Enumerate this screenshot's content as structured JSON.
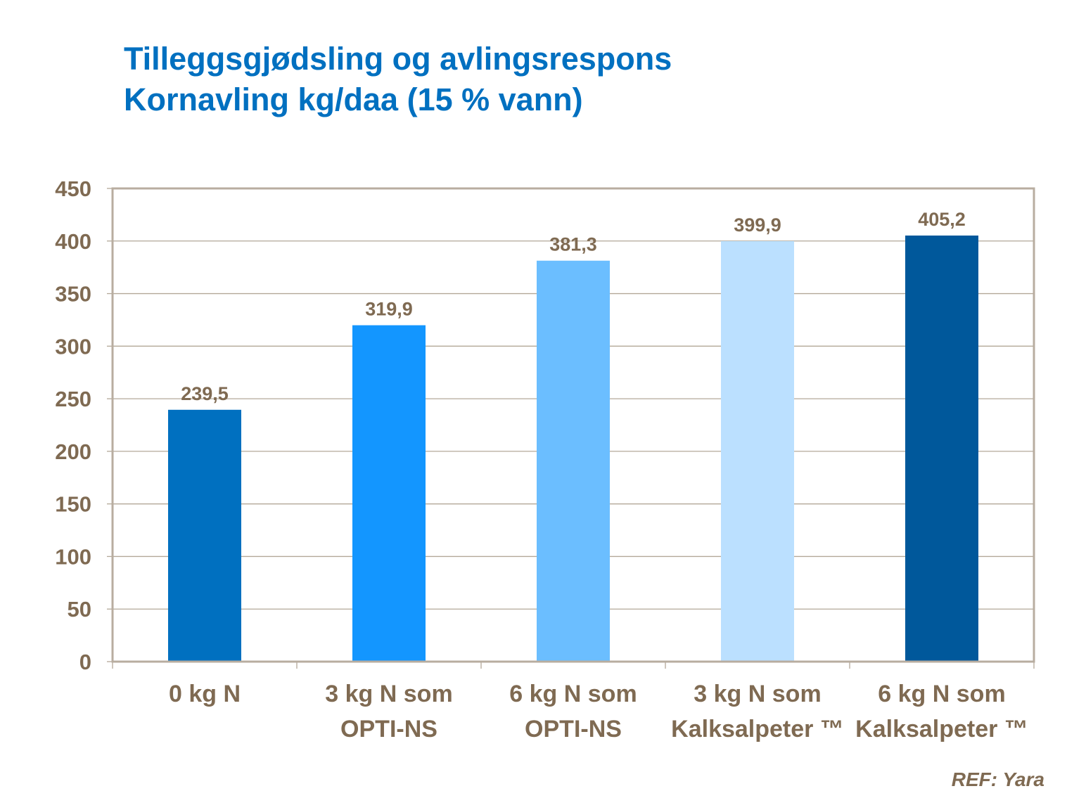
{
  "chart_data": {
    "type": "bar",
    "title": "Tilleggsgjødsling og avlingsrespons",
    "subtitle": "Kornavling kg/daa (15 % vann)",
    "categories": [
      [
        "0 kg N"
      ],
      [
        "3 kg N som",
        "OPTI-NS"
      ],
      [
        "6 kg N som",
        "OPTI-NS"
      ],
      [
        "3 kg N som",
        "Kalksalpeter ™"
      ],
      [
        "6 kg N som",
        "Kalksalpeter ™"
      ]
    ],
    "values": [
      239.5,
      319.9,
      381.3,
      399.9,
      405.2
    ],
    "data_labels": [
      "239,5",
      "319,9",
      "381,3",
      "399,9",
      "405,2"
    ],
    "colors": [
      "#0070C0",
      "#1396FF",
      "#6BBEFF",
      "#BBE0FF",
      "#00589B"
    ],
    "ylim": [
      0,
      450
    ],
    "yticks": [
      0,
      50,
      100,
      150,
      200,
      250,
      300,
      350,
      400,
      450
    ],
    "grid": true,
    "legend": "none",
    "xlabel": "",
    "ylabel": ""
  },
  "footer": {
    "reference": "REF: Yara"
  }
}
